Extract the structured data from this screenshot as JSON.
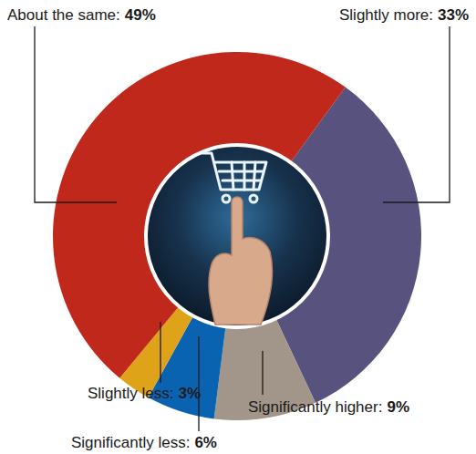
{
  "chart_data": {
    "type": "pie",
    "categories": [
      "Slightly more:",
      "Significantly higher:",
      "Significantly less:",
      "Slightly less:",
      "About the same:"
    ],
    "values": [
      33,
      9,
      6,
      3,
      49
    ],
    "value_labels": [
      "33%",
      "9%",
      "6%",
      "3%",
      "49%"
    ],
    "colors": [
      "#58527e",
      "#a2968a",
      "#0a63b0",
      "#dfa31a",
      "#c0281c"
    ],
    "data_labels": true
  }
}
